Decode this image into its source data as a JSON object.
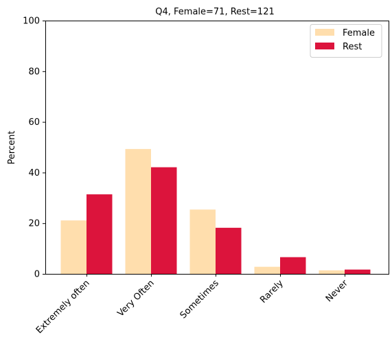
{
  "chart_data": {
    "type": "bar",
    "title": "Q4, Female=71, Rest=121",
    "xlabel": "",
    "ylabel": "Percent",
    "ylim": [
      0,
      100
    ],
    "yticks": [
      0,
      20,
      40,
      60,
      80,
      100
    ],
    "categories": [
      "Extremely often",
      "Very Often",
      "Sometimes",
      "Rarely",
      "Never"
    ],
    "series": [
      {
        "name": "Female",
        "color": "#FFDEAD",
        "values": [
          21.1,
          49.3,
          25.4,
          2.8,
          1.4
        ]
      },
      {
        "name": "Rest",
        "color": "#DC143C",
        "values": [
          31.4,
          42.1,
          18.2,
          6.6,
          1.7
        ]
      }
    ],
    "legend": "top-right",
    "grid": false
  }
}
